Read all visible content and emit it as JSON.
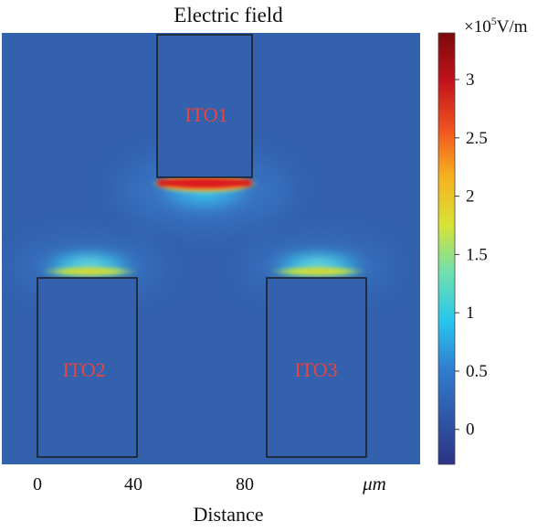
{
  "chart_data": {
    "type": "heatmap",
    "title": "Electric field",
    "xlabel": "Distance",
    "x_unit": "μm",
    "x_ticks": [
      0,
      40,
      80
    ],
    "colorbar": {
      "unit_prefix": "×10",
      "unit_exponent": "5",
      "unit_suffix": "V/m",
      "ticks": [
        0,
        0.5,
        1,
        1.5,
        2,
        2.5,
        3
      ],
      "tick_labels": [
        "0",
        "0.5",
        "1",
        "1.5",
        "2",
        "2.5",
        "3"
      ],
      "range": [
        -0.3,
        3.4
      ],
      "colormap": [
        "#2c3385",
        "#2f58a8",
        "#2f7ed0",
        "#28c6ee",
        "#6fe0b0",
        "#d8e235",
        "#f7b21f",
        "#f0521f",
        "#c1121c",
        "#7a0a0a"
      ]
    },
    "background_value": 0.5,
    "background_color": "#3361ae",
    "electrodes": [
      {
        "label": "ITO1",
        "x_range": [
          48,
          86
        ],
        "edge": "bottom",
        "peak_field": 3.3
      },
      {
        "label": "ITO2",
        "x_range": [
          0,
          40
        ],
        "edge": "top",
        "peak_field": 2.0
      },
      {
        "label": "ITO3",
        "x_range": [
          92,
          132
        ],
        "edge": "top",
        "peak_field": 2.0
      }
    ]
  }
}
